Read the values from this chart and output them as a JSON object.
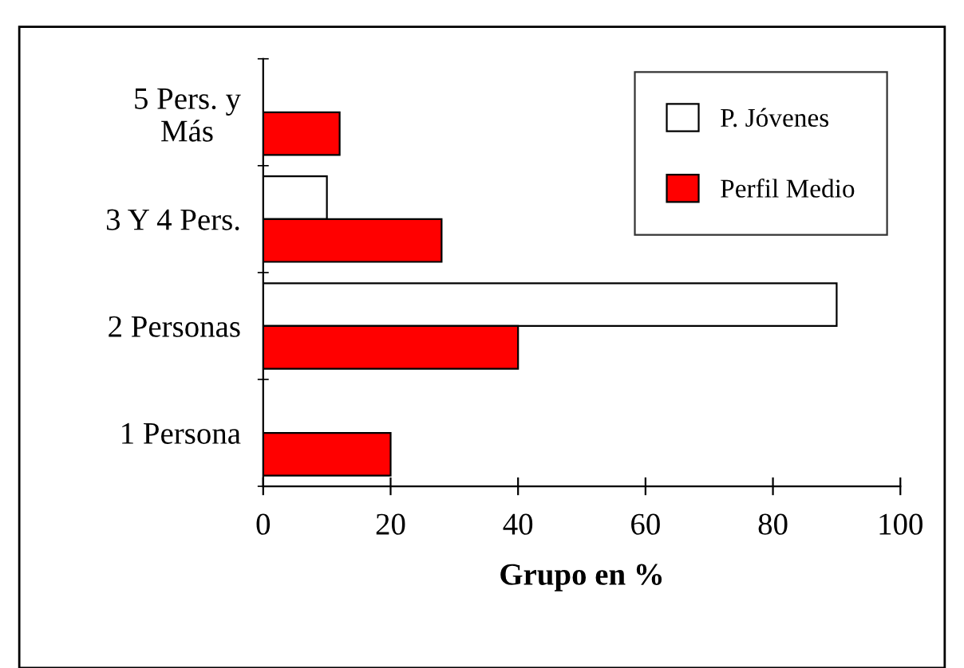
{
  "chart_data": {
    "type": "bar",
    "orientation": "horizontal",
    "xlabel": "Grupo en %",
    "categories": [
      "5 Pers. y\nMás",
      "3 Y 4 Pers.",
      "2 Personas",
      "1 Persona"
    ],
    "series": [
      {
        "name": "P. Jóvenes",
        "color": "#ffffff",
        "values": [
          null,
          10,
          90,
          null
        ]
      },
      {
        "name": "Perfil Medio",
        "color": "#ff0000",
        "values": [
          12,
          28,
          40,
          20
        ]
      }
    ],
    "xlim": [
      0,
      100
    ],
    "xticks": [
      0,
      20,
      40,
      60,
      80,
      100
    ],
    "grid": false,
    "legend": "top right"
  }
}
